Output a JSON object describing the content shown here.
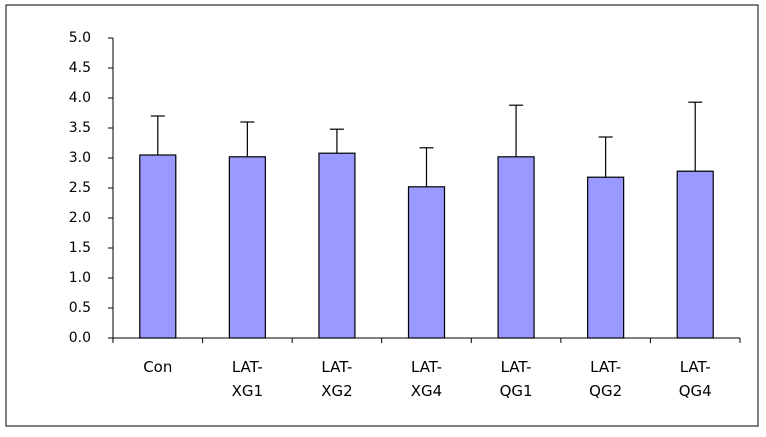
{
  "chart_data": {
    "type": "bar",
    "categories": [
      "Con",
      "LAT-XG1",
      "LAT-XG2",
      "LAT-XG4",
      "LAT-QG1",
      "LAT-QG2",
      "LAT-QG4"
    ],
    "values": [
      3.05,
      3.02,
      3.08,
      2.52,
      3.02,
      2.68,
      2.78
    ],
    "errors": [
      0.65,
      0.58,
      0.4,
      0.65,
      0.86,
      0.67,
      1.15
    ],
    "color": "#9999ff",
    "ylim": [
      0,
      5
    ],
    "yticks": [
      {
        "value": 0,
        "label": "0.0"
      },
      0.5,
      {
        "value": 1,
        "label": "1.0"
      },
      1.5,
      {
        "value": 2,
        "label": "2.0"
      },
      2.5,
      {
        "value": 3,
        "label": "3.0"
      },
      3.5,
      {
        "value": 4,
        "label": "4.0"
      },
      4.5,
      {
        "value": 5,
        "label": "5.0"
      }
    ],
    "grid": false
  }
}
